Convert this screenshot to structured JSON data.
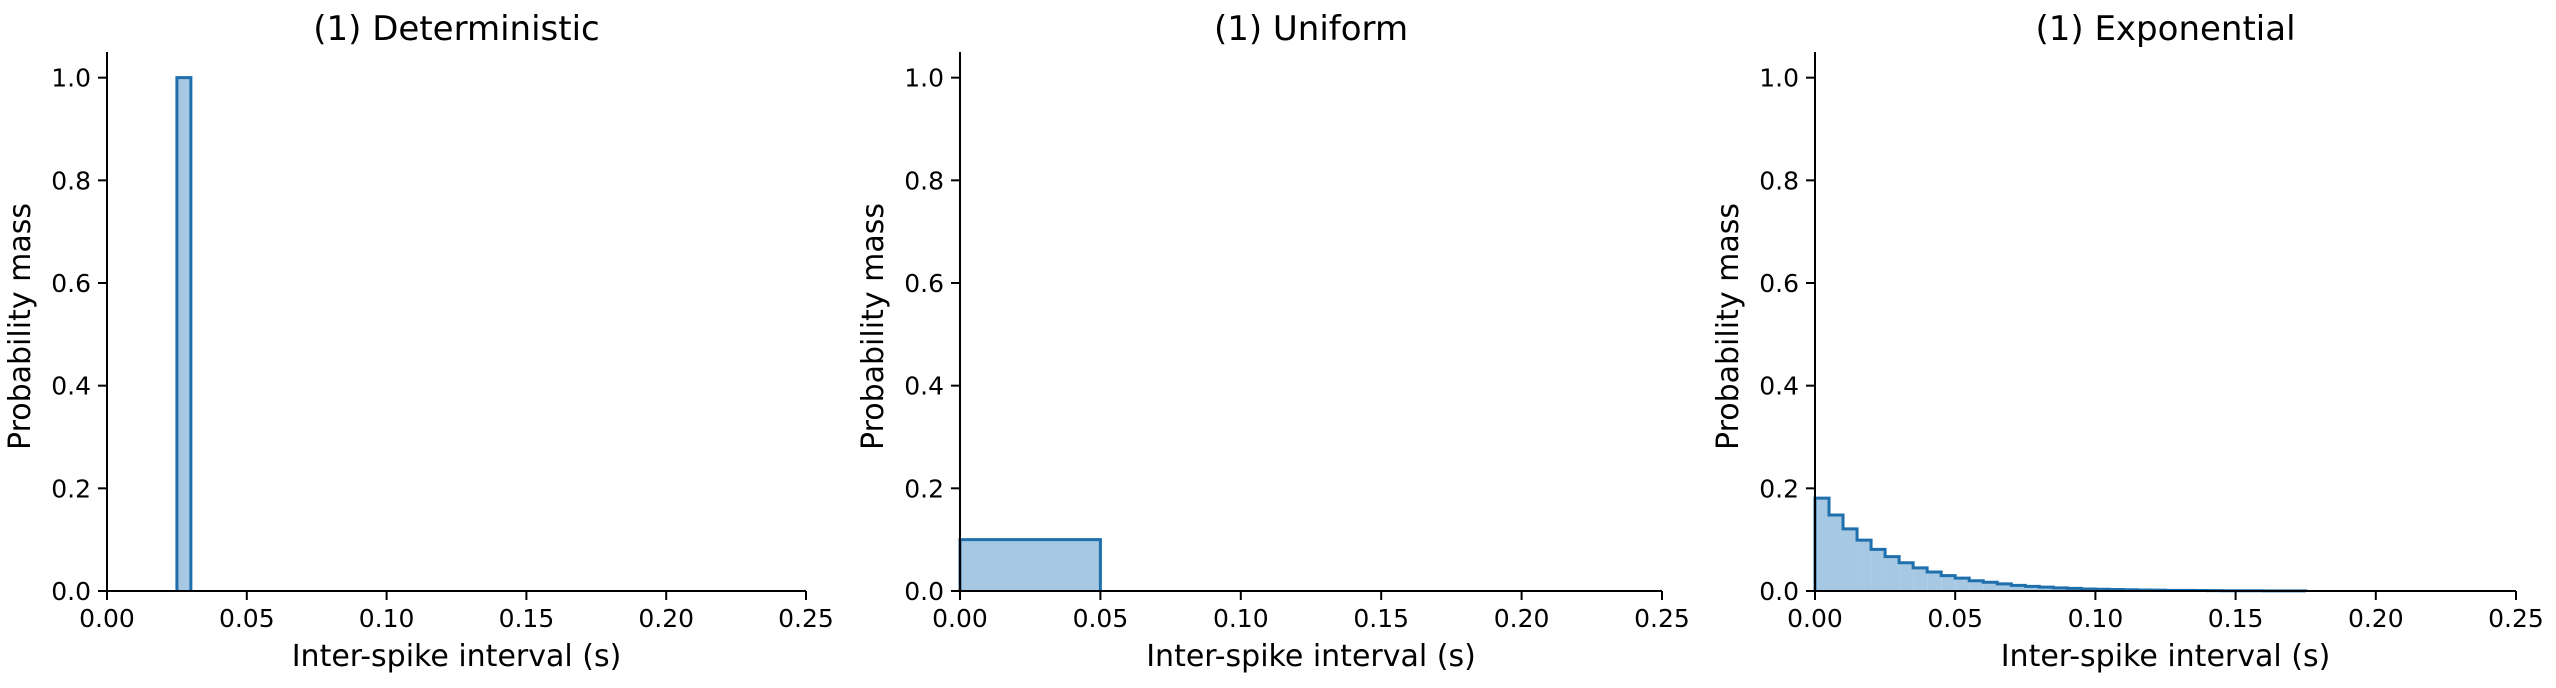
{
  "theme": {
    "bar_fill": "#a6c8e2",
    "bar_edge": "#1f6fad",
    "axis_color": "#000000"
  },
  "chart_data": [
    {
      "type": "histogram",
      "title": "(1) Deterministic",
      "xlabel": "Inter-spike interval (s)",
      "ylabel": "Probability mass",
      "xlim": [
        0,
        0.25
      ],
      "ylim": [
        0,
        1.05
      ],
      "xticks": [
        "0.00",
        "0.05",
        "0.10",
        "0.15",
        "0.20",
        "0.25"
      ],
      "yticks": [
        "0.0",
        "0.2",
        "0.4",
        "0.6",
        "0.8",
        "1.0"
      ],
      "grid": false,
      "bins": [
        {
          "x0": 0.025,
          "x1": 0.03,
          "y": 1.0
        }
      ]
    },
    {
      "type": "histogram",
      "title": "(1) Uniform",
      "xlabel": "Inter-spike interval (s)",
      "ylabel": "Probability mass",
      "xlim": [
        0,
        0.25
      ],
      "ylim": [
        0,
        1.05
      ],
      "xticks": [
        "0.00",
        "0.05",
        "0.10",
        "0.15",
        "0.20",
        "0.25"
      ],
      "yticks": [
        "0.0",
        "0.2",
        "0.4",
        "0.6",
        "0.8",
        "1.0"
      ],
      "grid": false,
      "bins": [
        {
          "x0": 0.0,
          "x1": 0.05,
          "y": 0.1
        }
      ]
    },
    {
      "type": "histogram",
      "title": "(1) Exponential",
      "xlabel": "Inter-spike interval (s)",
      "ylabel": "Probability mass",
      "xlim": [
        0,
        0.25
      ],
      "ylim": [
        0,
        1.05
      ],
      "xticks": [
        "0.00",
        "0.05",
        "0.10",
        "0.15",
        "0.20",
        "0.25"
      ],
      "yticks": [
        "0.0",
        "0.2",
        "0.4",
        "0.6",
        "0.8",
        "1.0"
      ],
      "grid": false,
      "bins": [
        {
          "x0": 0.0,
          "x1": 0.005,
          "y": 0.181
        },
        {
          "x0": 0.005,
          "x1": 0.01,
          "y": 0.148
        },
        {
          "x0": 0.01,
          "x1": 0.015,
          "y": 0.121
        },
        {
          "x0": 0.015,
          "x1": 0.02,
          "y": 0.099
        },
        {
          "x0": 0.02,
          "x1": 0.025,
          "y": 0.081
        },
        {
          "x0": 0.025,
          "x1": 0.03,
          "y": 0.067
        },
        {
          "x0": 0.03,
          "x1": 0.035,
          "y": 0.055
        },
        {
          "x0": 0.035,
          "x1": 0.04,
          "y": 0.045
        },
        {
          "x0": 0.04,
          "x1": 0.045,
          "y": 0.037
        },
        {
          "x0": 0.045,
          "x1": 0.05,
          "y": 0.03
        },
        {
          "x0": 0.05,
          "x1": 0.055,
          "y": 0.025
        },
        {
          "x0": 0.055,
          "x1": 0.06,
          "y": 0.02
        },
        {
          "x0": 0.06,
          "x1": 0.065,
          "y": 0.017
        },
        {
          "x0": 0.065,
          "x1": 0.07,
          "y": 0.014
        },
        {
          "x0": 0.07,
          "x1": 0.075,
          "y": 0.011
        },
        {
          "x0": 0.075,
          "x1": 0.08,
          "y": 0.009
        },
        {
          "x0": 0.08,
          "x1": 0.085,
          "y": 0.0075
        },
        {
          "x0": 0.085,
          "x1": 0.09,
          "y": 0.006
        },
        {
          "x0": 0.09,
          "x1": 0.095,
          "y": 0.005
        },
        {
          "x0": 0.095,
          "x1": 0.1,
          "y": 0.004
        },
        {
          "x0": 0.1,
          "x1": 0.105,
          "y": 0.0035
        },
        {
          "x0": 0.105,
          "x1": 0.11,
          "y": 0.003
        },
        {
          "x0": 0.11,
          "x1": 0.115,
          "y": 0.0025
        },
        {
          "x0": 0.115,
          "x1": 0.12,
          "y": 0.002
        },
        {
          "x0": 0.12,
          "x1": 0.125,
          "y": 0.0016
        },
        {
          "x0": 0.125,
          "x1": 0.13,
          "y": 0.0013
        },
        {
          "x0": 0.13,
          "x1": 0.135,
          "y": 0.0011
        },
        {
          "x0": 0.135,
          "x1": 0.14,
          "y": 0.0009
        },
        {
          "x0": 0.14,
          "x1": 0.145,
          "y": 0.0007
        },
        {
          "x0": 0.145,
          "x1": 0.15,
          "y": 0.0006
        },
        {
          "x0": 0.15,
          "x1": 0.155,
          "y": 0.0005
        },
        {
          "x0": 0.155,
          "x1": 0.16,
          "y": 0.0004
        },
        {
          "x0": 0.16,
          "x1": 0.165,
          "y": 0.0003
        },
        {
          "x0": 0.165,
          "x1": 0.17,
          "y": 0.0003
        },
        {
          "x0": 0.17,
          "x1": 0.175,
          "y": 0.0002
        }
      ]
    }
  ]
}
